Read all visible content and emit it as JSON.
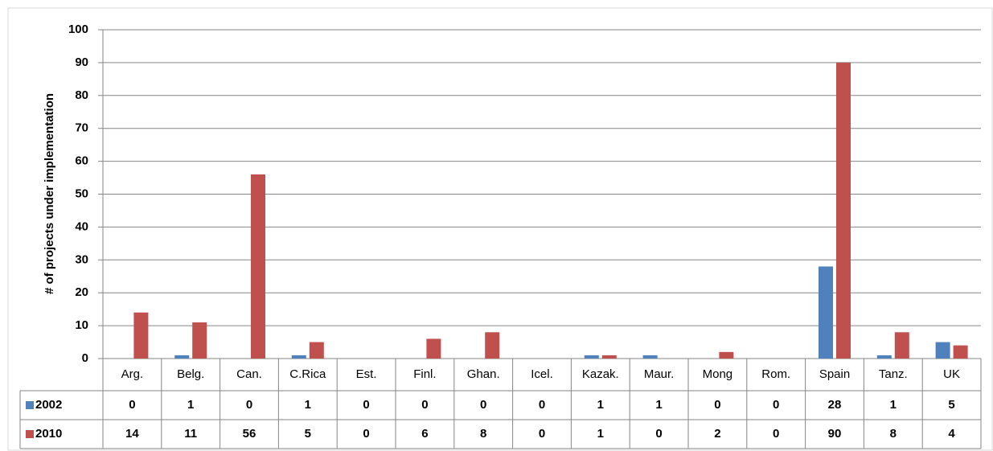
{
  "chart_data": {
    "type": "bar",
    "y_label": "# of projects under implementation",
    "categories": [
      "Arg.",
      "Belg.",
      "Can.",
      "C.Rica",
      "Est.",
      "Finl.",
      "Ghan.",
      "Icel.",
      "Kazak.",
      "Maur.",
      "Mong",
      "Rom.",
      "Spain",
      "Tanz.",
      "UK"
    ],
    "series": [
      {
        "name": "2002",
        "color": "#4f81bd",
        "values": [
          0,
          1,
          0,
          1,
          0,
          0,
          0,
          0,
          1,
          1,
          0,
          0,
          28,
          1,
          5
        ]
      },
      {
        "name": "2010",
        "color": "#c0504d",
        "values": [
          14,
          11,
          56,
          5,
          0,
          6,
          8,
          0,
          1,
          0,
          2,
          0,
          90,
          8,
          4
        ]
      }
    ],
    "ylim": [
      0,
      100
    ],
    "yticks": [
      0,
      10,
      20,
      30,
      40,
      50,
      60,
      70,
      80,
      90,
      100
    ],
    "grid": true
  }
}
